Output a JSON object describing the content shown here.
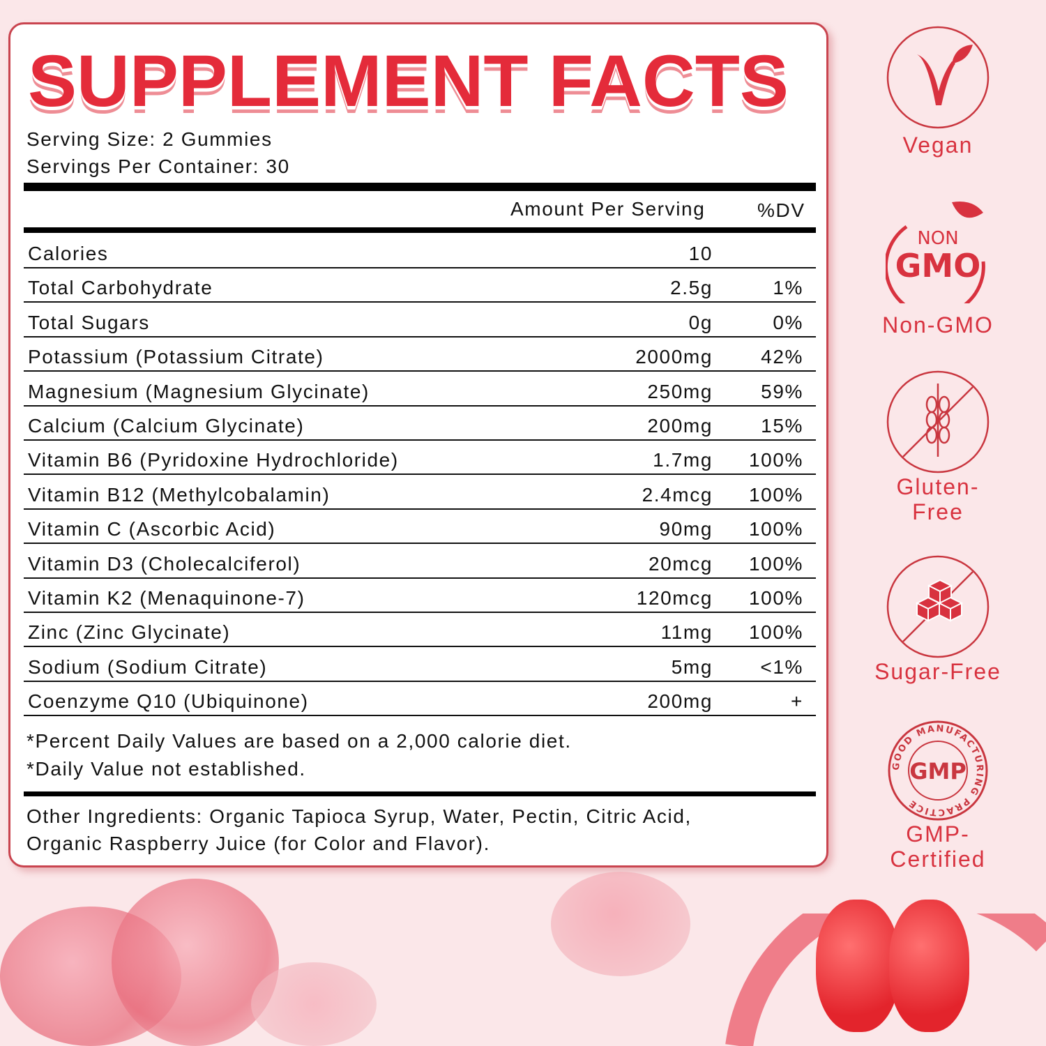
{
  "title": "SUPPLEMENT FACTS",
  "serving_size": "Serving Size: 2 Gummies",
  "servings_per_container": "Servings Per Container: 30",
  "header": {
    "amount": "Amount Per Serving",
    "dv": "%DV"
  },
  "rows": [
    {
      "name": "Calories",
      "amount": "10",
      "dv": ""
    },
    {
      "name": "Total Carbohydrate",
      "amount": "2.5g",
      "dv": "1%"
    },
    {
      "name": "Total Sugars",
      "amount": "0g",
      "dv": "0%"
    },
    {
      "name": "Potassium (Potassium Citrate)",
      "amount": "2000mg",
      "dv": "42%"
    },
    {
      "name": "Magnesium (Magnesium Glycinate)",
      "amount": "250mg",
      "dv": "59%"
    },
    {
      "name": "Calcium (Calcium Glycinate)",
      "amount": "200mg",
      "dv": "15%"
    },
    {
      "name": "Vitamin B6 (Pyridoxine Hydrochloride)",
      "amount": "1.7mg",
      "dv": "100%"
    },
    {
      "name": "Vitamin B12 (Methylcobalamin)",
      "amount": "2.4mcg",
      "dv": "100%"
    },
    {
      "name": "Vitamin C (Ascorbic Acid)",
      "amount": "90mg",
      "dv": "100%"
    },
    {
      "name": "Vitamin D3 (Cholecalciferol)",
      "amount": "20mcg",
      "dv": "100%"
    },
    {
      "name": "Vitamin K2 (Menaquinone-7)",
      "amount": "120mcg",
      "dv": "100%"
    },
    {
      "name": "Zinc (Zinc Glycinate)",
      "amount": "11mg",
      "dv": "100%"
    },
    {
      "name": "Sodium (Sodium Citrate)",
      "amount": "5mg",
      "dv": "<1%"
    },
    {
      "name": "Coenzyme Q10 (Ubiquinone)",
      "amount": "200mg",
      "dv": "+"
    }
  ],
  "footnotes": [
    "*Percent Daily Values are based on a 2,000 calorie diet.",
    "*Daily Value not established."
  ],
  "other_ingredients": [
    "Other Ingredients: Organic Tapioca Syrup, Water, Pectin, Citric Acid,",
    "Organic Raspberry Juice (for Color and Flavor)."
  ],
  "badges": [
    {
      "icon": "vegan-leaf-icon",
      "label": "Vegan"
    },
    {
      "icon": "non-gmo-icon",
      "label": "Non-GMO",
      "icon_text": [
        "NON",
        "GMO"
      ]
    },
    {
      "icon": "gluten-free-wheat-icon",
      "label": "Gluten-Free",
      "label_lines": [
        "Gluten-",
        "Free"
      ]
    },
    {
      "icon": "sugar-free-cubes-icon",
      "label": "Sugar-Free"
    },
    {
      "icon": "gmp-seal-icon",
      "label": "GMP-Certified",
      "label_lines": [
        "GMP-",
        "Certified"
      ],
      "seal_text": "GOOD MANUFACTURING PRACTICE",
      "seal_center": "GMP"
    }
  ],
  "colors": {
    "accent": "#e42b3a",
    "background": "#fbe7e9",
    "border": "#c9444f"
  }
}
